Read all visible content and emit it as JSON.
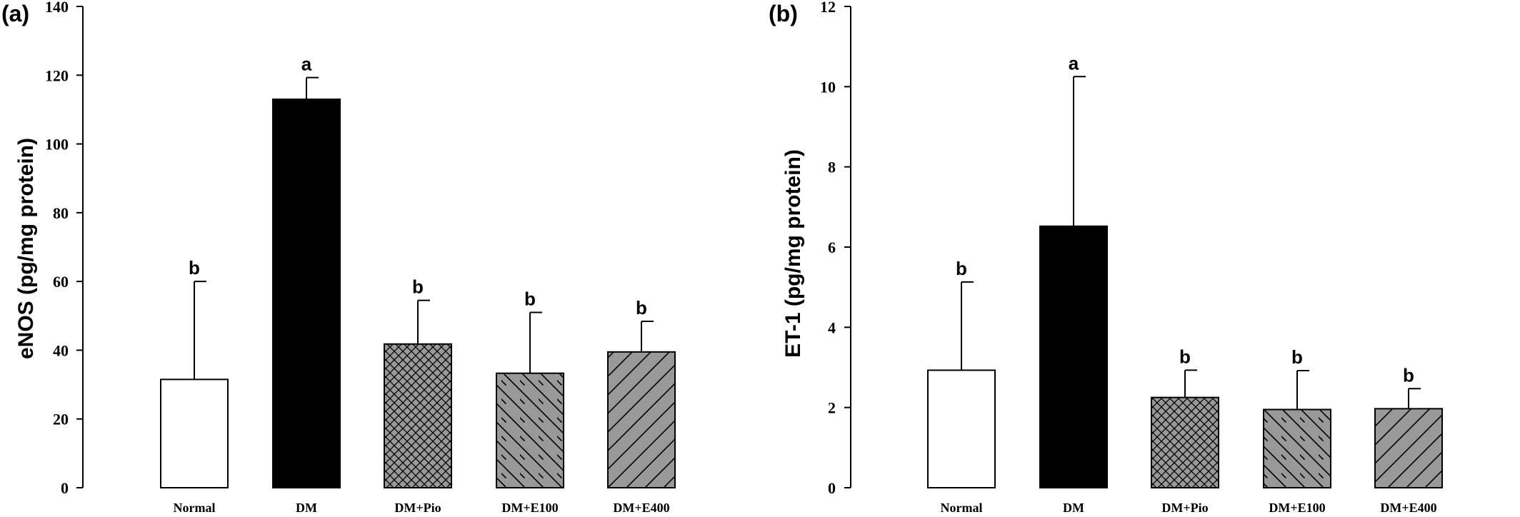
{
  "chart_data": [
    {
      "type": "bar",
      "panel_label": "(a)",
      "ylabel": "eNOS (pg/mg protein)",
      "ylim": [
        0,
        140
      ],
      "yticks": [
        "0",
        "20",
        "40",
        "60",
        "80",
        "100",
        "120",
        "140"
      ],
      "categories": [
        "Normal",
        "DM",
        "DM+Pio",
        "DM+E100",
        "DM+E400"
      ],
      "values": [
        31.5,
        113,
        41.8,
        33.3,
        39.5
      ],
      "errors": [
        28.5,
        6.3,
        12.7,
        17.7,
        8.9
      ],
      "significance": [
        "b",
        "a",
        "b",
        "b",
        "b"
      ],
      "fills": [
        "white",
        "black",
        "crosshatch",
        "backslash",
        "slash"
      ]
    },
    {
      "type": "bar",
      "panel_label": "(b)",
      "ylabel": "ET-1 (pg/mg protein)",
      "ylim": [
        0,
        12
      ],
      "yticks": [
        "0",
        "2",
        "4",
        "6",
        "8",
        "10",
        "12"
      ],
      "categories": [
        "Normal",
        "DM",
        "DM+Pio",
        "DM+E100",
        "DM+E400"
      ],
      "values": [
        2.93,
        6.52,
        2.25,
        1.95,
        1.97
      ],
      "errors": [
        2.2,
        3.73,
        0.68,
        0.97,
        0.5
      ],
      "significance": [
        "b",
        "a",
        "b",
        "b",
        "b"
      ],
      "fills": [
        "white",
        "black",
        "crosshatch",
        "backslash",
        "slash"
      ]
    }
  ],
  "colors": {
    "bar_fill": "#999999",
    "bar_black": "#000000",
    "bar_white": "#ffffff",
    "stroke": "#000000"
  }
}
